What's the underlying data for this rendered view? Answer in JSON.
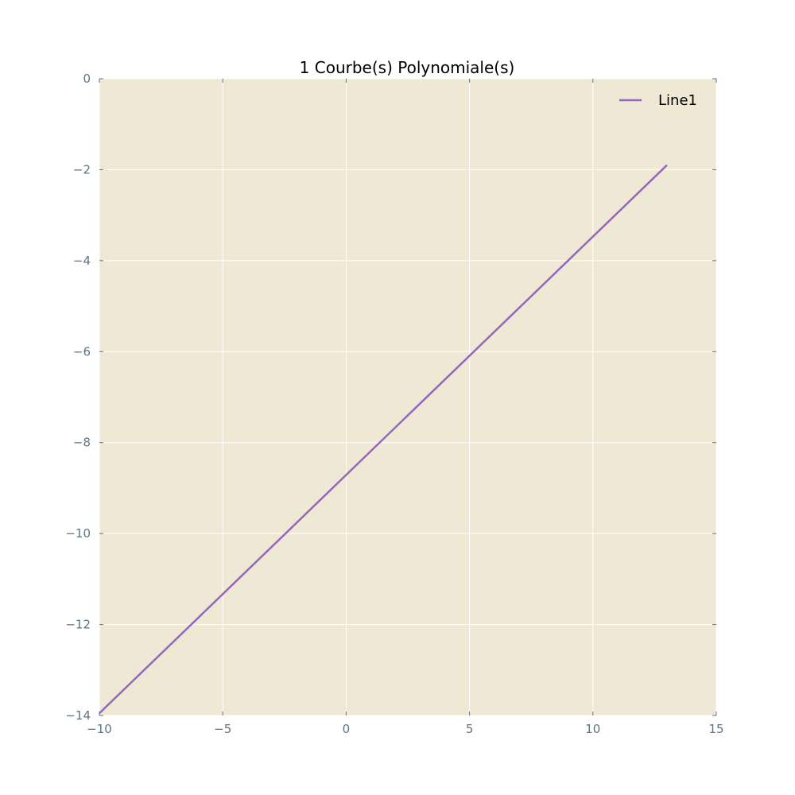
{
  "chart_data": {
    "type": "line",
    "title": "1 Courbe(s) Polynomiale(s)",
    "xlabel": "",
    "ylabel": "",
    "xlim": [
      -10,
      15
    ],
    "ylim": [
      -14,
      0
    ],
    "x_ticks": [
      -10,
      -5,
      0,
      5,
      10,
      15
    ],
    "y_ticks": [
      0,
      -2,
      -4,
      -6,
      -8,
      -10,
      -12,
      -14
    ],
    "x_tick_labels": [
      "−10",
      "−5",
      "0",
      "5",
      "10",
      "15"
    ],
    "y_tick_labels": [
      "0",
      "−2",
      "−4",
      "−6",
      "−8",
      "−10",
      "−12",
      "−14"
    ],
    "grid": true,
    "legend_position": "top-right",
    "series": [
      {
        "name": "Line1",
        "color": "#9467bd",
        "x": [
          -10,
          13
        ],
        "y": [
          -13.95,
          -1.9
        ]
      }
    ]
  },
  "colors": {
    "plot_background": "#eee8d5",
    "grid": "#ffffff",
    "tick_text": "#5e7480"
  }
}
